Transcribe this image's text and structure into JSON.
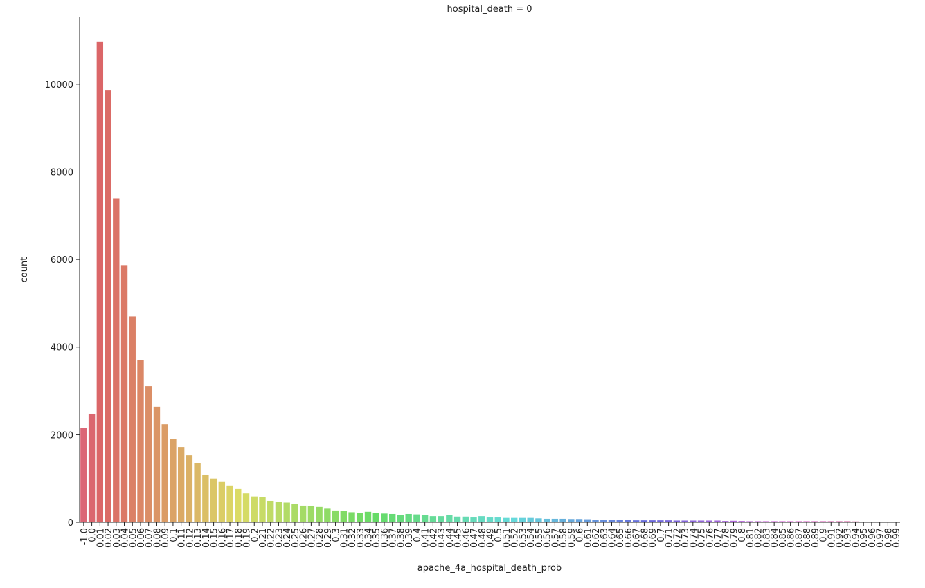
{
  "chart_data": {
    "type": "bar",
    "title": "hospital_death = 0",
    "x_label": "apache_4a_hospital_death_prob",
    "y_label": "count",
    "categories": [
      "-1.0",
      "0.0",
      "0.01",
      "0.02",
      "0.03",
      "0.04",
      "0.05",
      "0.06",
      "0.07",
      "0.08",
      "0.09",
      "0.1",
      "0.11",
      "0.12",
      "0.13",
      "0.14",
      "0.15",
      "0.16",
      "0.17",
      "0.18",
      "0.19",
      "0.2",
      "0.21",
      "0.22",
      "0.23",
      "0.24",
      "0.25",
      "0.26",
      "0.27",
      "0.28",
      "0.29",
      "0.3",
      "0.31",
      "0.32",
      "0.33",
      "0.34",
      "0.35",
      "0.36",
      "0.37",
      "0.38",
      "0.39",
      "0.4",
      "0.41",
      "0.42",
      "0.43",
      "0.44",
      "0.45",
      "0.46",
      "0.47",
      "0.48",
      "0.49",
      "0.5",
      "0.51",
      "0.52",
      "0.53",
      "0.54",
      "0.55",
      "0.56",
      "0.57",
      "0.58",
      "0.59",
      "0.6",
      "0.61",
      "0.62",
      "0.63",
      "0.64",
      "0.65",
      "0.66",
      "0.67",
      "0.68",
      "0.69",
      "0.7",
      "0.71",
      "0.72",
      "0.73",
      "0.74",
      "0.75",
      "0.76",
      "0.77",
      "0.78",
      "0.79",
      "0.8",
      "0.81",
      "0.82",
      "0.83",
      "0.84",
      "0.85",
      "0.86",
      "0.87",
      "0.88",
      "0.89",
      "0.9",
      "0.91",
      "0.92",
      "0.93",
      "0.94",
      "0.95",
      "0.96",
      "0.97",
      "0.98",
      "0.99"
    ],
    "values": [
      2150,
      2480,
      10980,
      9870,
      7400,
      5870,
      4700,
      3700,
      3110,
      2640,
      2240,
      1900,
      1720,
      1530,
      1350,
      1090,
      1000,
      920,
      840,
      760,
      660,
      590,
      580,
      490,
      460,
      450,
      420,
      380,
      370,
      350,
      310,
      270,
      260,
      230,
      210,
      240,
      210,
      200,
      190,
      160,
      190,
      180,
      160,
      140,
      140,
      160,
      130,
      130,
      110,
      140,
      110,
      110,
      100,
      100,
      100,
      100,
      90,
      80,
      80,
      80,
      75,
      75,
      70,
      55,
      55,
      50,
      50,
      50,
      45,
      45,
      45,
      45,
      45,
      40,
      40,
      40,
      40,
      40,
      40,
      30,
      35,
      30,
      25,
      25,
      25,
      25,
      25,
      25,
      25,
      25,
      25,
      25,
      25,
      25,
      25,
      20,
      5,
      3,
      2,
      1,
      1
    ],
    "palette": "husl",
    "ylim": [
      0,
      11530
    ],
    "yticks": [
      0,
      2000,
      4000,
      6000,
      8000,
      10000
    ],
    "grid": false
  }
}
